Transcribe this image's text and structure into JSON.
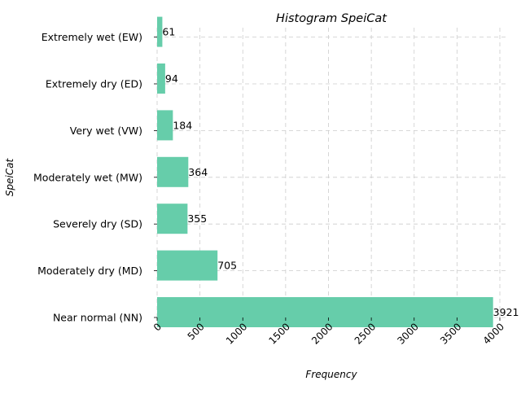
{
  "chart_data": {
    "type": "bar",
    "orientation": "horizontal",
    "title": "Histogram SpeiCat",
    "xlabel": "Frequency",
    "ylabel": "SpeiCat",
    "categories": [
      "Near normal (NN)",
      "Moderately dry (MD)",
      "Severely dry (SD)",
      "Moderately wet (MW)",
      "Very wet (VW)",
      "Extremely dry (ED)",
      "Extremely wet (EW)"
    ],
    "values": [
      3921,
      705,
      355,
      364,
      184,
      94,
      61
    ],
    "xlim": [
      0,
      4000
    ],
    "xticks": [
      0,
      500,
      1000,
      1500,
      2000,
      2500,
      3000,
      3500,
      4000
    ],
    "xtick_rotation": 45,
    "grid": true,
    "grid_style": "dashed",
    "bar_color": "#66cdaa",
    "data_labels": true
  }
}
